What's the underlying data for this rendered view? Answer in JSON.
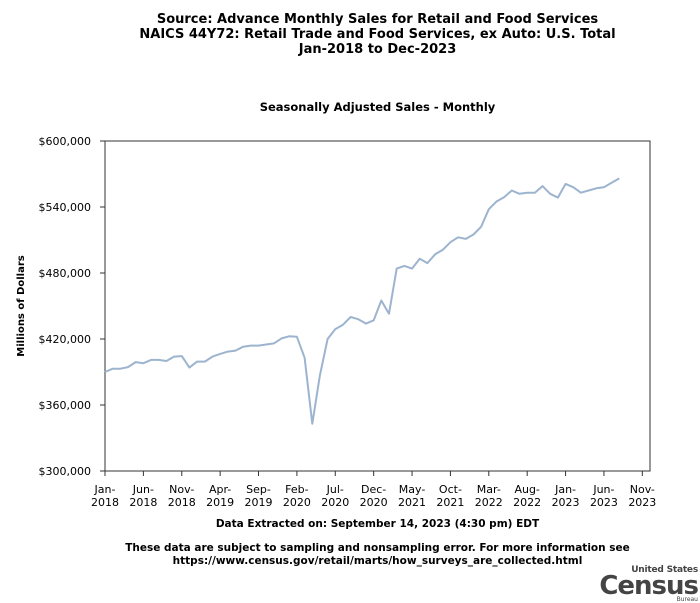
{
  "header": {
    "title_line1": "Source: Advance Monthly Sales for Retail and Food Services",
    "title_line2": "NAICS 44Y72: Retail Trade and Food Services, ex Auto: U.S. Total",
    "title_line3": "Jan-2018 to Dec-2023"
  },
  "chart_data": {
    "type": "line",
    "title": "Seasonally Adjusted Sales - Monthly",
    "ylabel": "Millions of Dollars",
    "xlabel": "",
    "ylim": [
      300000,
      600000
    ],
    "y_ticks": [
      "$300,000",
      "$360,000",
      "$420,000",
      "$480,000",
      "$540,000",
      "$600,000"
    ],
    "y_tick_values": [
      300000,
      360000,
      420000,
      480000,
      540000,
      600000
    ],
    "x_ticks": [
      {
        "month": "Jan-",
        "year": "2018",
        "index": 0
      },
      {
        "month": "Jun-",
        "year": "2018",
        "index": 5
      },
      {
        "month": "Nov-",
        "year": "2018",
        "index": 10
      },
      {
        "month": "Apr-",
        "year": "2019",
        "index": 15
      },
      {
        "month": "Sep-",
        "year": "2019",
        "index": 20
      },
      {
        "month": "Feb-",
        "year": "2020",
        "index": 25
      },
      {
        "month": "Jul-",
        "year": "2020",
        "index": 30
      },
      {
        "month": "Dec-",
        "year": "2020",
        "index": 35
      },
      {
        "month": "May-",
        "year": "2021",
        "index": 40
      },
      {
        "month": "Oct-",
        "year": "2021",
        "index": 45
      },
      {
        "month": "Mar-",
        "year": "2022",
        "index": 50
      },
      {
        "month": "Aug-",
        "year": "2022",
        "index": 55
      },
      {
        "month": "Jan-",
        "year": "2023",
        "index": 60
      },
      {
        "month": "Jun-",
        "year": "2023",
        "index": 65
      },
      {
        "month": "Nov-",
        "year": "2023",
        "index": 70
      }
    ],
    "x_range": [
      0,
      71
    ],
    "grid": false,
    "line_color": "#9db4cf",
    "series": [
      {
        "values": [
          390000,
          393000,
          393000,
          394500,
          399000,
          398000,
          401000,
          401000,
          400000,
          404000,
          404500,
          394000,
          399500,
          399500,
          404000,
          406500,
          408500,
          409500,
          413000,
          414000,
          414000,
          415000,
          416000,
          420500,
          422500,
          422000,
          403000,
          343000,
          387000,
          420000,
          429000,
          433000,
          440000,
          438000,
          434000,
          437000,
          455000,
          443000,
          484000,
          486500,
          484000,
          493000,
          489000,
          497000,
          501000,
          508000,
          512500,
          511000,
          515000,
          522000,
          538000,
          545000,
          549000,
          555000,
          552000,
          553000,
          553000,
          559000,
          552000,
          548500,
          561000,
          558000,
          553000,
          555000,
          557000,
          558000,
          562000,
          566000
        ]
      }
    ]
  },
  "footer": {
    "extracted": "Data Extracted on: September 14, 2023 (4:30 pm) EDT",
    "note_line1": "These data are subject to sampling and nonsampling error. For more information see",
    "note_line2": "https://www.census.gov/retail/marts/how_surveys_are_collected.html"
  },
  "logo": {
    "line1": "United States",
    "line2": "Census",
    "line3": "Bureau"
  }
}
